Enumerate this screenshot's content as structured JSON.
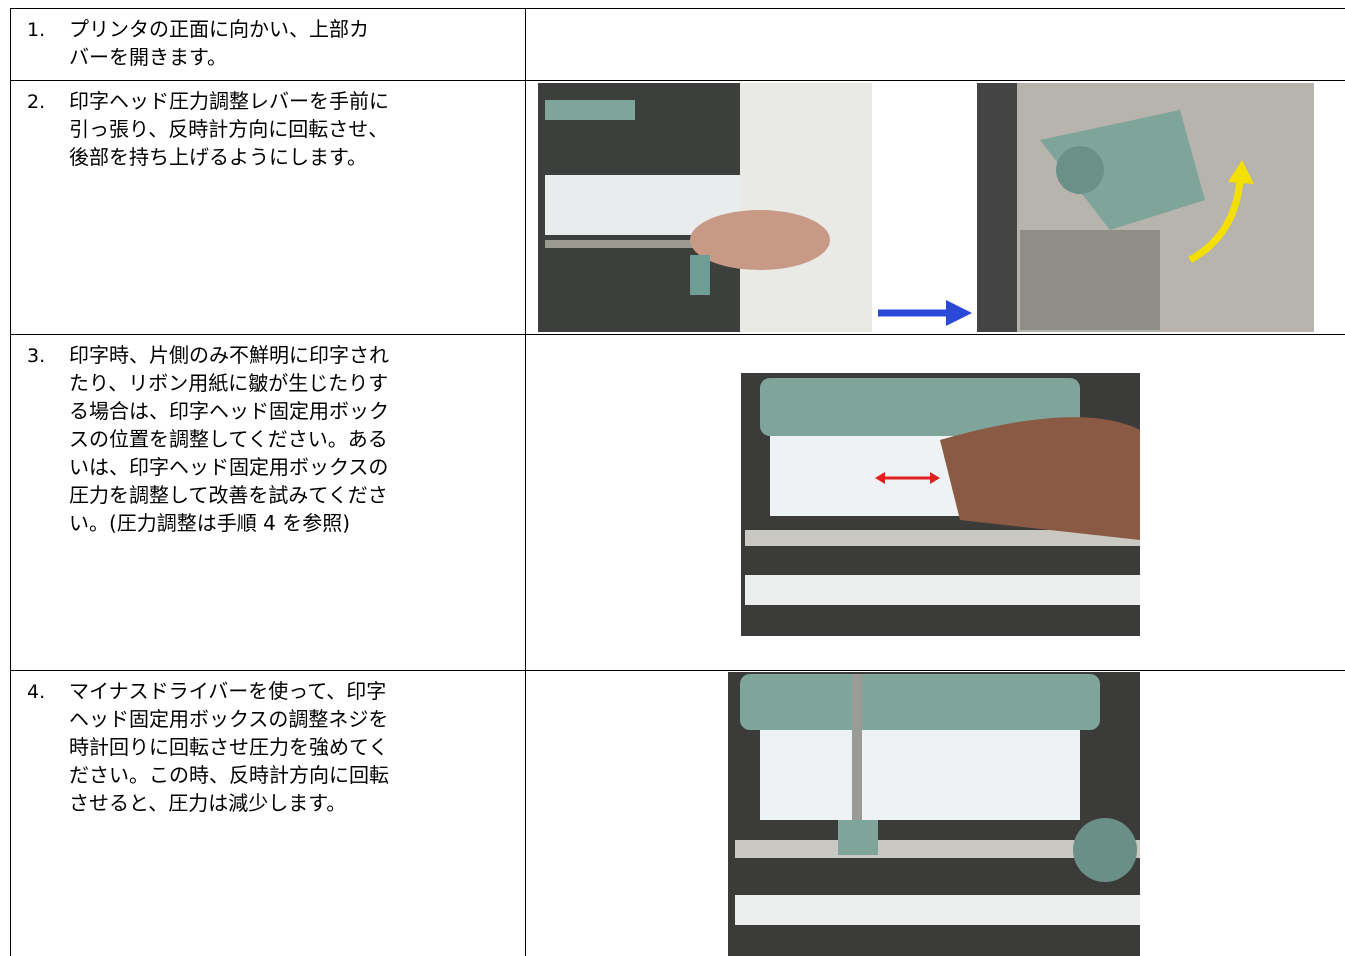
{
  "steps": [
    {
      "number": "1.",
      "lines": [
        "プリンタの正面に向かい、上部カ",
        "バーを開きます。"
      ]
    },
    {
      "number": "2.",
      "lines": [
        "印字ヘッド圧力調整レバーを手前に",
        "引っ張り、反時計方向に回転させ、",
        "後部を持ち上げるようにします。"
      ]
    },
    {
      "number": "3.",
      "lines": [
        "印字時、片側のみ不鮮明に印字され",
        "たり、リボン用紙に皺が生じたりす",
        "る場合は、印字ヘッド固定用ボック",
        "スの位置を調整してください。ある",
        "いは、印字ヘッド固定用ボックスの",
        "圧力を調整して改善を試みてくださ",
        "い。(圧力調整は手順 4 を参照)"
      ]
    },
    {
      "number": "4.",
      "lines": [
        "マイナスドライバーを使って、印字",
        "ヘッド固定用ボックスの調整ネジを",
        "時計回りに回転させ圧力を強めてく",
        "ださい。この時、反時計方向に回転",
        "させると、圧力は減少します。"
      ]
    }
  ]
}
